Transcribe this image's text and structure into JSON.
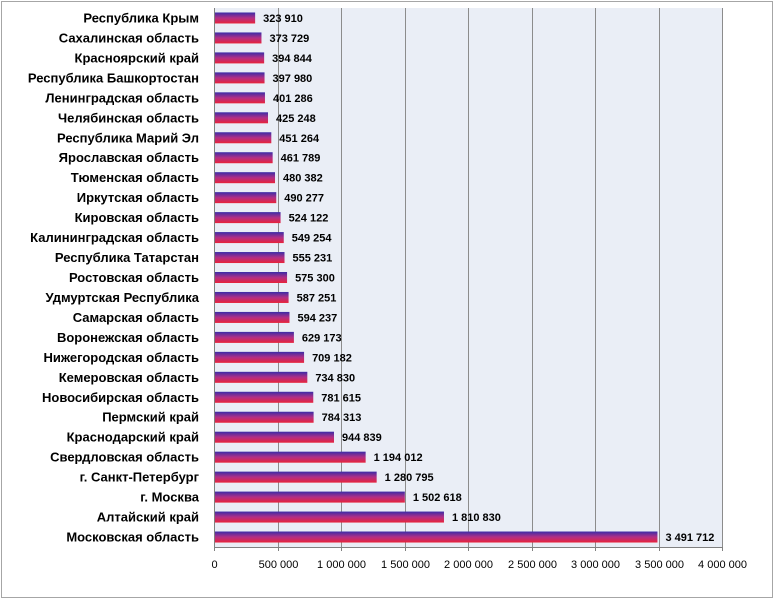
{
  "chart_data": {
    "type": "bar",
    "orientation": "horizontal",
    "categories": [
      "Республика Крым",
      "Сахалинская область",
      "Красноярский край",
      "Республика Башкортостан",
      "Ленинградская область",
      "Челябинская область",
      "Республика Марий Эл",
      "Ярославская область",
      "Тюменская область",
      "Иркутская область",
      "Кировская область",
      "Калининградская область",
      "Республика Татарстан",
      "Ростовская область",
      "Удмуртская Республика",
      "Самарская область",
      "Воронежская область",
      "Нижегородская область",
      "Кемеровская область",
      "Новосибирская область",
      "Пермский край",
      "Краснодарский край",
      "Свердловская область",
      "г. Санкт-Петербург",
      "г. Москва",
      "Алтайский край",
      "Московская область"
    ],
    "values": [
      323910,
      373729,
      394844,
      397980,
      401286,
      425248,
      451264,
      461789,
      480382,
      490277,
      524122,
      549254,
      555231,
      575300,
      587251,
      594237,
      629173,
      709182,
      734830,
      781615,
      784313,
      944839,
      1194012,
      1280795,
      1502618,
      1810830,
      3491712
    ],
    "value_labels": [
      "323 910",
      "373 729",
      "394 844",
      "397 980",
      "401 286",
      "425 248",
      "451 264",
      "461 789",
      "480 382",
      "490 277",
      "524 122",
      "549 254",
      "555 231",
      "575 300",
      "587 251",
      "594 237",
      "629 173",
      "709 182",
      "734 830",
      "781 615",
      "784 313",
      "944 839",
      "1 194 012",
      "1 280 795",
      "1 502 618",
      "1 810 830",
      "3 491 712"
    ],
    "xticks": [
      0,
      500000,
      1000000,
      1500000,
      2000000,
      2500000,
      3000000,
      3500000,
      4000000
    ],
    "xtick_labels": [
      "0",
      "500 000",
      "1 000 000",
      "1 500 000",
      "2 000 000",
      "2 500 000",
      "3 000 000",
      "3 500 000",
      "4 000 000"
    ],
    "xlim": [
      0,
      4000000
    ],
    "title": "",
    "xlabel": "",
    "ylabel": "",
    "grid": "vertical",
    "legend": "none",
    "colors": {
      "bar_top": "#3a2ca8",
      "bar_mid": "#b12f86",
      "bar_bottom": "#e8233a",
      "plot_background": "#eaeef6",
      "grid": "#8c8c8c"
    }
  }
}
